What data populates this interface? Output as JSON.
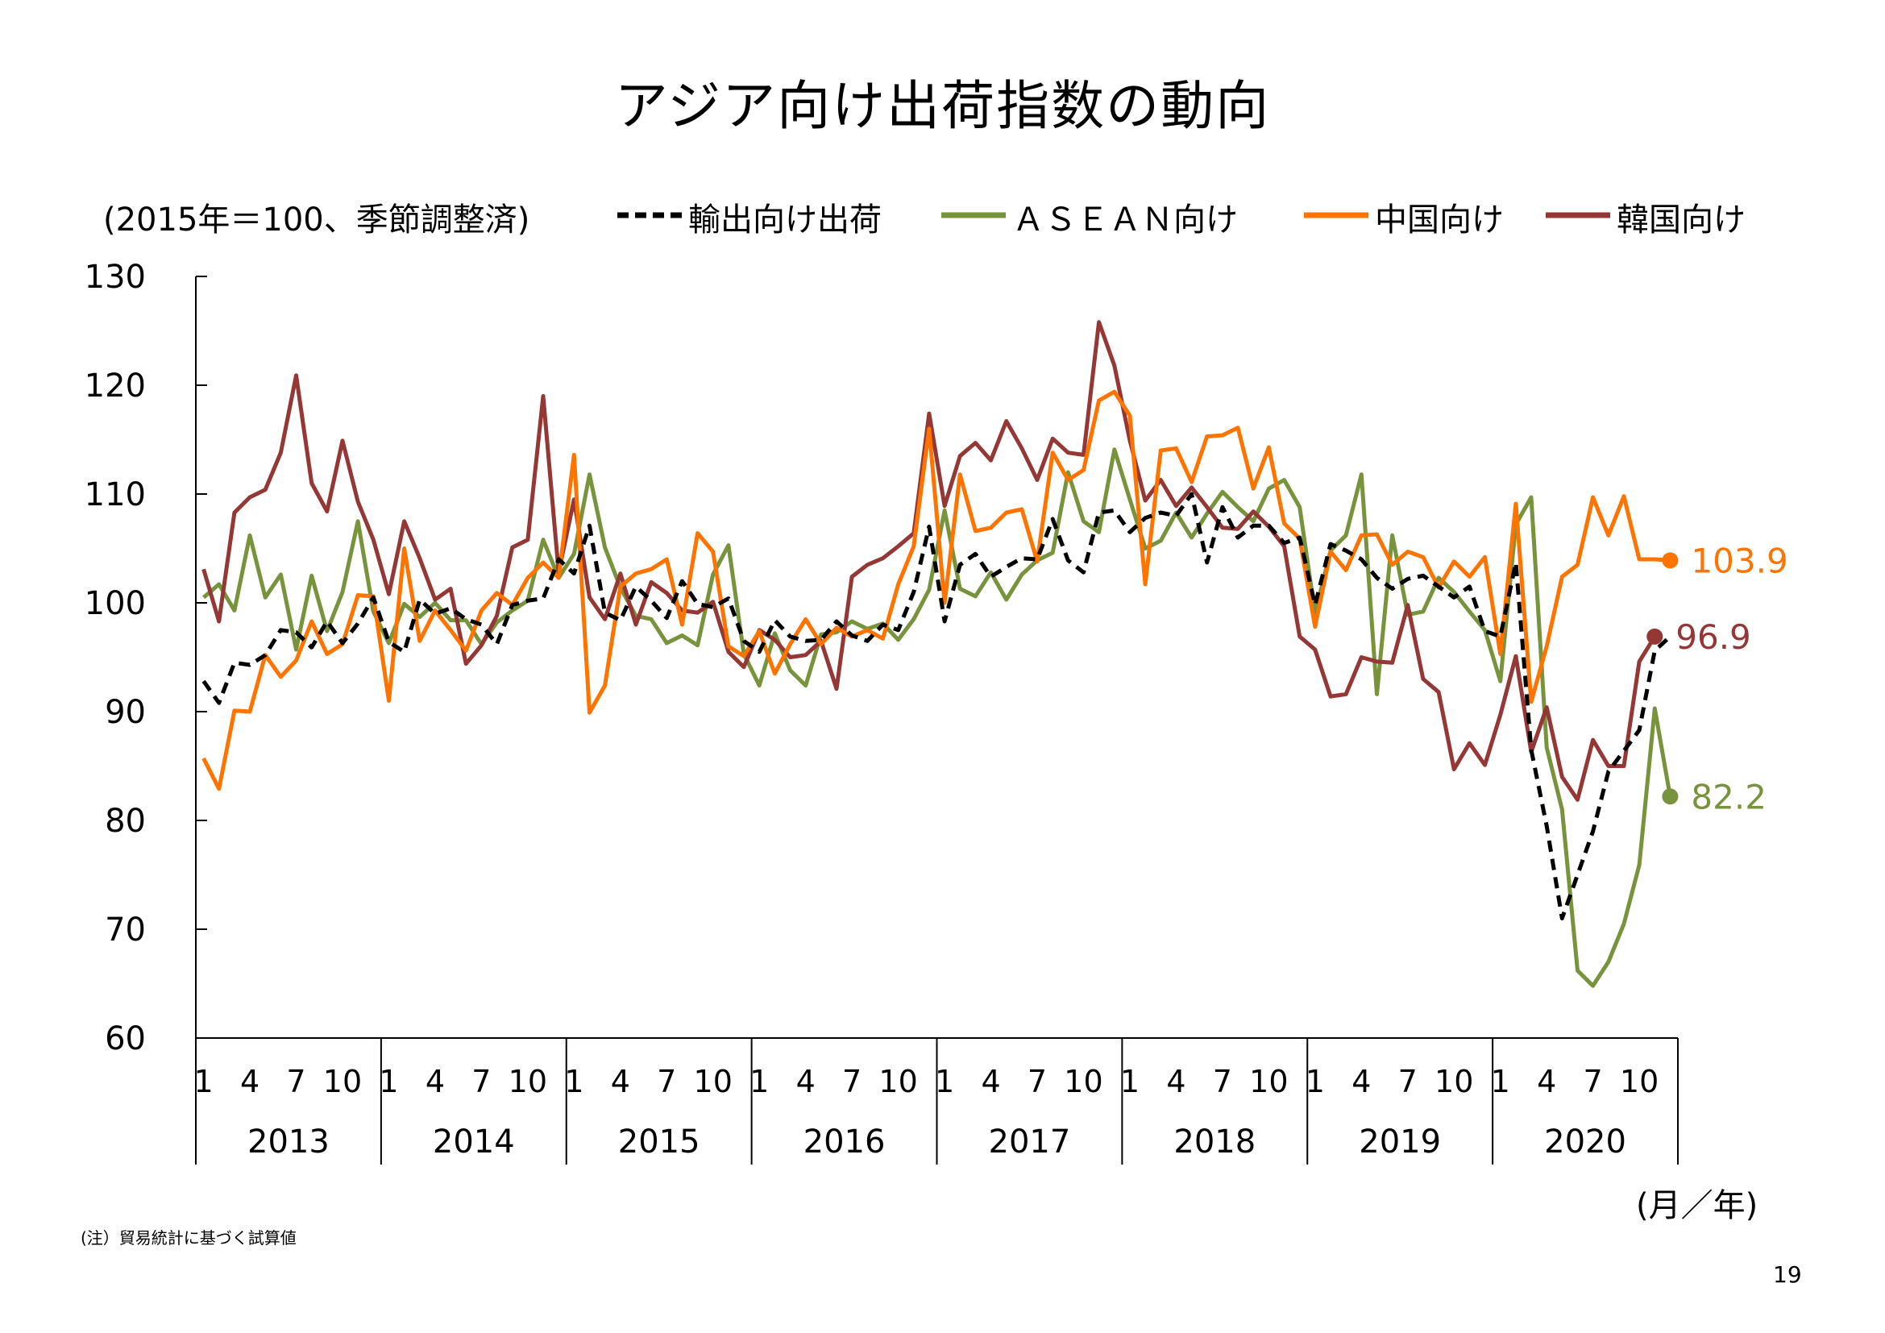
{
  "title": "アジア向け出荷指数の動向",
  "unit_label": "(2015年＝100、季節調整済)",
  "x_unit_label": "(月／年)",
  "note": "(注）貿易統計に基づく試算値",
  "page_number": "19",
  "chart_data": {
    "type": "line",
    "title": "アジア向け出荷指数の動向",
    "ylabel": "(2015年＝100、季節調整済)",
    "xlabel": "(月／年)",
    "ylim": [
      60,
      130
    ],
    "yticks": [
      "130",
      "120",
      "110",
      "100",
      "90",
      "80",
      "70",
      "60"
    ],
    "years": [
      "2013",
      "2014",
      "2015",
      "2016",
      "2017",
      "2018",
      "2019",
      "2020"
    ],
    "month_ticks": [
      "1",
      "4",
      "7",
      "10"
    ],
    "grid": false,
    "legend_position": "top",
    "series": [
      {
        "name": "輸出向け出荷",
        "color": "#000000",
        "dashed": true,
        "values": [
          92.8,
          90.8,
          94.5,
          94.3,
          95.2,
          97.5,
          97.3,
          95.9,
          98.3,
          96.3,
          98.1,
          100.5,
          96.4,
          95.5,
          100.3,
          99.0,
          99.5,
          98.5,
          98.0,
          96.2,
          99.8,
          100.2,
          100.4,
          104.0,
          102.7,
          107.1,
          99.1,
          98.4,
          101.5,
          100.2,
          98.6,
          102.0,
          99.9,
          99.6,
          100.4,
          96.5,
          95.5,
          98.4,
          96.9,
          96.5,
          96.6,
          98.3,
          97.0,
          96.5,
          98.0,
          97.5,
          101.0,
          107.0,
          98.3,
          103.5,
          104.5,
          102.4,
          103.3,
          104.1,
          104.0,
          107.7,
          103.9,
          102.8,
          108.3,
          108.5,
          106.5,
          107.8,
          108.3,
          108.0,
          110.0,
          103.7,
          108.8,
          106.0,
          107.1,
          107.1,
          105.5,
          106.0,
          99.8,
          105.4,
          104.8,
          104.0,
          102.3,
          101.3,
          102.2,
          102.5,
          101.5,
          100.5,
          101.5,
          97.4,
          96.9,
          103.7,
          86.5,
          79.5,
          71.0,
          75.0,
          79.0,
          84.5,
          86.4,
          88.3,
          95.6,
          96.9
        ]
      },
      {
        "name": "ＡＳＥＡＮ向け",
        "color": "#77933c",
        "dashed": false,
        "values": [
          100.5,
          101.7,
          99.3,
          106.2,
          100.5,
          102.6,
          95.7,
          102.5,
          97.4,
          101.0,
          107.5,
          99.2,
          96.3,
          99.9,
          98.7,
          100.0,
          98.4,
          98.4,
          96.2,
          98.2,
          99.3,
          100.2,
          105.8,
          102.3,
          104.5,
          111.8,
          105.1,
          101.4,
          98.8,
          98.5,
          96.3,
          97.0,
          96.1,
          102.6,
          105.3,
          95.3,
          92.4,
          97.2,
          93.8,
          92.4,
          97.1,
          97.3,
          98.3,
          97.6,
          98.1,
          96.6,
          98.5,
          101.2,
          108.5,
          101.3,
          100.6,
          102.8,
          100.3,
          102.6,
          103.9,
          104.6,
          112.0,
          107.5,
          106.5,
          114.1,
          109.5,
          105.0,
          105.7,
          108.3,
          106.0,
          108.2,
          110.2,
          108.8,
          107.5,
          110.5,
          111.3,
          108.8,
          99.0,
          104.8,
          106.2,
          111.8,
          91.6,
          106.2,
          98.9,
          99.2,
          102.3,
          101.0,
          99.2,
          97.5,
          92.8,
          107.2,
          109.7,
          86.7,
          81.0,
          66.2,
          64.8,
          67.0,
          70.5,
          75.9,
          90.3,
          82.2
        ]
      },
      {
        "name": "中国向け",
        "color": "#ff7400",
        "dashed": false,
        "values": [
          85.7,
          82.9,
          90.1,
          90.0,
          95.2,
          93.2,
          94.7,
          98.3,
          95.3,
          96.2,
          100.7,
          100.6,
          91.0,
          105.0,
          96.5,
          99.3,
          97.5,
          95.6,
          99.3,
          100.9,
          99.8,
          102.3,
          103.7,
          102.3,
          113.6,
          89.9,
          92.4,
          101.5,
          102.7,
          103.1,
          104.0,
          98.0,
          106.4,
          104.7,
          96.0,
          95.1,
          97.4,
          93.5,
          96.2,
          98.5,
          96.2,
          97.7,
          96.9,
          97.5,
          96.7,
          101.7,
          105.2,
          116.0,
          100.0,
          111.8,
          106.6,
          106.9,
          108.3,
          108.6,
          103.8,
          113.8,
          111.3,
          112.2,
          118.6,
          119.4,
          117.2,
          101.7,
          114.0,
          114.2,
          111.1,
          115.3,
          115.4,
          116.1,
          110.5,
          114.3,
          107.3,
          105.9,
          97.8,
          104.7,
          103.0,
          106.2,
          106.3,
          103.5,
          104.7,
          104.2,
          101.4,
          103.8,
          102.4,
          104.2,
          95.3,
          109.1,
          90.9,
          96.0,
          102.4,
          103.5,
          109.7,
          106.2,
          109.8,
          104.0,
          104.0,
          103.9
        ]
      },
      {
        "name": "韓国向け",
        "color": "#953735",
        "dashed": false,
        "values": [
          103.1,
          98.3,
          108.3,
          109.7,
          110.4,
          113.8,
          120.9,
          111.0,
          108.4,
          114.9,
          109.3,
          105.8,
          100.8,
          107.5,
          104.1,
          100.3,
          101.3,
          94.4,
          96.1,
          98.8,
          105.1,
          105.8,
          119.0,
          102.8,
          109.5,
          100.5,
          98.5,
          102.7,
          98.0,
          101.9,
          100.9,
          99.3,
          99.1,
          100.1,
          95.5,
          94.1,
          97.5,
          96.6,
          95.0,
          95.2,
          96.5,
          92.1,
          102.4,
          103.5,
          104.1,
          105.2,
          106.4,
          117.4,
          108.9,
          113.5,
          114.7,
          113.1,
          116.7,
          114.2,
          111.3,
          115.1,
          113.8,
          113.6,
          125.8,
          121.8,
          114.9,
          109.4,
          111.3,
          108.9,
          110.6,
          108.8,
          106.9,
          106.8,
          108.4,
          107.0,
          105.2,
          96.9,
          95.7,
          91.4,
          91.6,
          95.0,
          94.6,
          94.5,
          99.8,
          93.0,
          91.8,
          84.7,
          87.1,
          85.1,
          89.7,
          95.1,
          86.3,
          90.4,
          84.0,
          81.9,
          87.4,
          85.0,
          85.0,
          94.6,
          96.9
        ]
      }
    ],
    "end_labels": [
      {
        "series": "中国向け",
        "text": "103.9",
        "color": "#ff7400"
      },
      {
        "series": "韓国向け",
        "text": "96.9",
        "color": "#953735"
      },
      {
        "series": "ＡＳＥＡＮ向け",
        "text": "82.2",
        "color": "#77933c"
      }
    ]
  }
}
